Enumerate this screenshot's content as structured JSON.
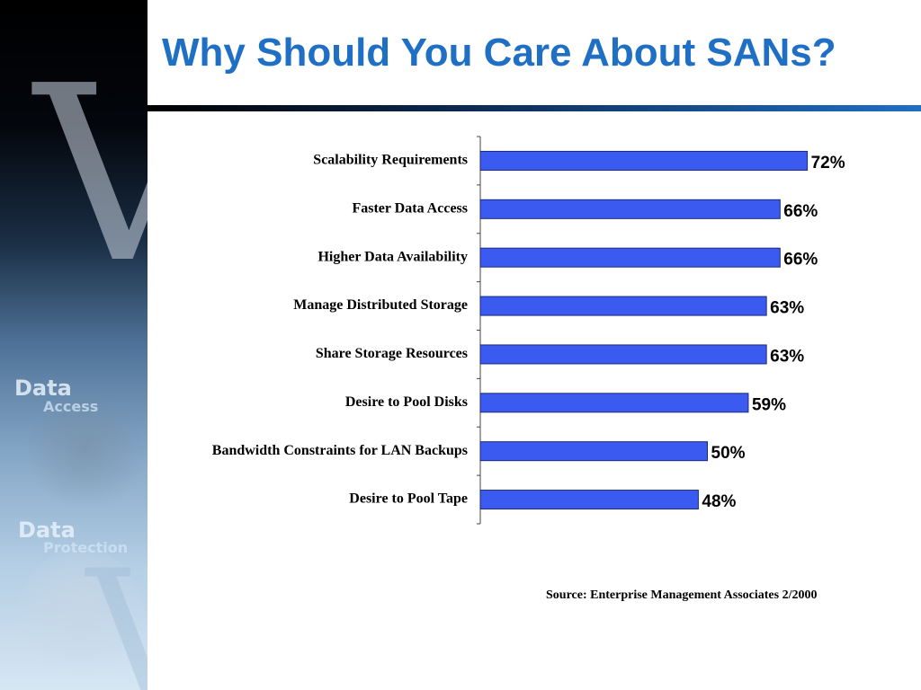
{
  "slide": {
    "title": "Why Should You Care About SANs?",
    "source": "Source: Enterprise Management Associates 2/2000",
    "title_color": "#1f6fc5",
    "bar_color": "#3b5bf0"
  },
  "sidebar": {
    "letter": "V",
    "items": [
      {
        "word": "Data",
        "sub": "Access"
      },
      {
        "word": "Data",
        "sub": "Protection"
      }
    ]
  },
  "chart_data": {
    "type": "bar",
    "orientation": "horizontal",
    "categories": [
      "Scalability Requirements",
      "Faster Data Access",
      "Higher Data Availability",
      "Manage Distributed Storage",
      "Share Storage Resources",
      "Desire to Pool Disks",
      "Bandwidth Constraints for LAN Backups",
      "Desire to Pool Tape"
    ],
    "values": [
      72,
      66,
      66,
      63,
      63,
      59,
      50,
      48
    ],
    "value_labels": [
      "72%",
      "66%",
      "66%",
      "63%",
      "63%",
      "59%",
      "50%",
      "48%"
    ],
    "xlim": [
      0,
      100
    ],
    "grid": false,
    "legend": "none"
  }
}
